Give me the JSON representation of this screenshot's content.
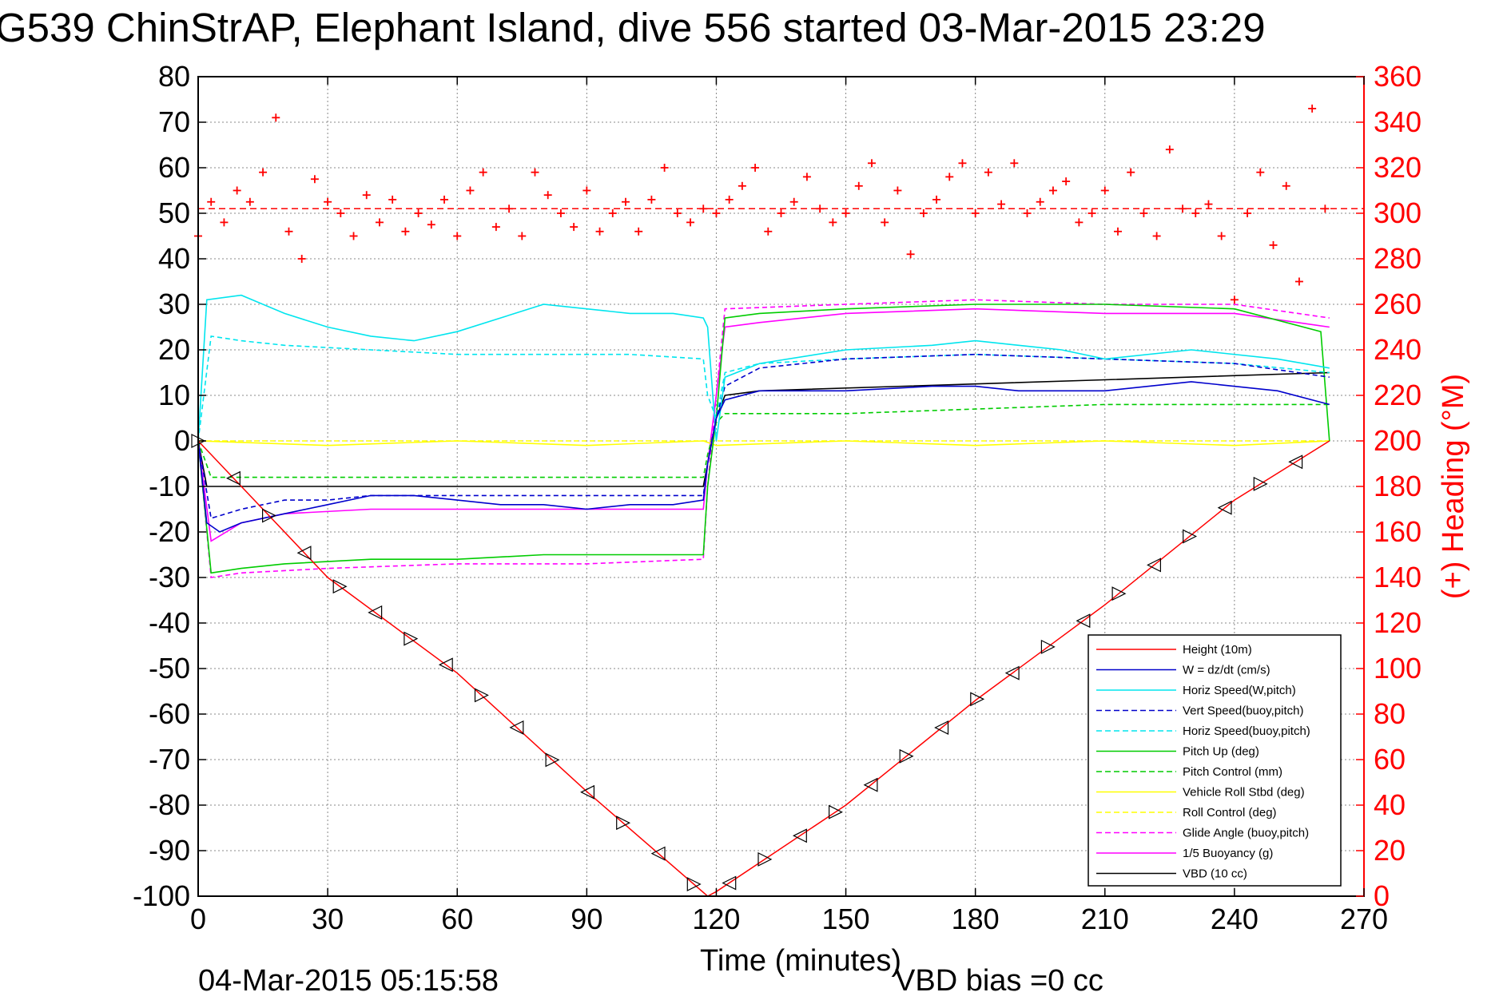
{
  "chart_data": {
    "type": "line",
    "title": "G539 ChinStrAP, Elephant Island, dive 556 started 03-Mar-2015 23:29",
    "xlabel": "Time (minutes)",
    "ylabel_right": "(+) Heading (°M)",
    "footer_left": "04-Mar-2015 05:15:58",
    "footer_right": "VBD bias =0 cc",
    "xlim": [
      0,
      270
    ],
    "ylim": [
      -100,
      80
    ],
    "ylim_right": [
      0,
      360
    ],
    "x_ticks": [
      "0",
      "30",
      "60",
      "90",
      "120",
      "150",
      "180",
      "210",
      "240",
      "270"
    ],
    "y_ticks": [
      "80",
      "70",
      "60",
      "50",
      "40",
      "30",
      "20",
      "10",
      "0",
      "-10",
      "-20",
      "-30",
      "-40",
      "-50",
      "-60",
      "-70",
      "-80",
      "-90",
      "-100"
    ],
    "y_ticks_right": [
      "360",
      "340",
      "320",
      "300",
      "280",
      "260",
      "240",
      "220",
      "200",
      "180",
      "160",
      "140",
      "120",
      "100",
      "80",
      "60",
      "40",
      "20",
      "0"
    ],
    "grid": true,
    "legend_position": "lower-right",
    "colors": {
      "height": "#ff0000",
      "w": "#0000cc",
      "horiz": "#00e5ee",
      "pitch": "#00cc00",
      "roll": "#ffff00",
      "glide": "#ff00ff",
      "vbd": "#000000",
      "heading": "#ff0000"
    },
    "series": [
      {
        "name": "Height (10m)",
        "color": "#ff0000",
        "style": "solid",
        "x": [
          0,
          30,
          60,
          90,
          118,
          120,
          150,
          180,
          210,
          240,
          262
        ],
        "y": [
          0,
          -30,
          -51,
          -77,
          -100,
          -99,
          -80,
          -57,
          -36,
          -13,
          0
        ]
      },
      {
        "name": "W = dz/dt (cm/s)",
        "color": "#0000cc",
        "style": "solid",
        "x": [
          0,
          2,
          5,
          10,
          20,
          30,
          40,
          50,
          60,
          70,
          80,
          90,
          100,
          110,
          117,
          118,
          120,
          122,
          130,
          150,
          170,
          180,
          190,
          210,
          230,
          250,
          262
        ],
        "y": [
          0,
          -18,
          -20,
          -18,
          -16,
          -14,
          -12,
          -12,
          -13,
          -14,
          -14,
          -15,
          -14,
          -14,
          -13,
          -5,
          5,
          9,
          11,
          11,
          12,
          12,
          11,
          11,
          13,
          11,
          8
        ]
      },
      {
        "name": "Horiz Speed(W,pitch)",
        "color": "#00e5ee",
        "style": "solid",
        "x": [
          0,
          2,
          10,
          20,
          30,
          40,
          50,
          60,
          70,
          80,
          90,
          100,
          110,
          117,
          118,
          120,
          122,
          130,
          150,
          170,
          180,
          190,
          200,
          210,
          230,
          250,
          262
        ],
        "y": [
          0,
          31,
          32,
          28,
          25,
          23,
          22,
          24,
          27,
          30,
          29,
          28,
          28,
          27,
          25,
          0,
          14,
          17,
          20,
          21,
          22,
          21,
          20,
          18,
          20,
          18,
          16
        ]
      },
      {
        "name": "Vert Speed(buoy,pitch)",
        "color": "#0000cc",
        "style": "dashed",
        "x": [
          0,
          3,
          10,
          20,
          30,
          40,
          60,
          80,
          100,
          117,
          118,
          120,
          122,
          130,
          150,
          180,
          210,
          240,
          262
        ],
        "y": [
          0,
          -17,
          -15,
          -13,
          -13,
          -12,
          -12,
          -12,
          -12,
          -12,
          -5,
          5,
          12,
          16,
          18,
          19,
          18,
          17,
          14
        ]
      },
      {
        "name": "Horiz Speed(buoy,pitch)",
        "color": "#00e5ee",
        "style": "dashed",
        "x": [
          0,
          3,
          10,
          20,
          40,
          60,
          80,
          100,
          117,
          118,
          120,
          122,
          130,
          150,
          180,
          210,
          240,
          262
        ],
        "y": [
          0,
          23,
          22,
          21,
          20,
          19,
          19,
          19,
          18,
          10,
          5,
          15,
          17,
          18,
          19,
          18,
          17,
          15
        ]
      },
      {
        "name": "Pitch Up (deg)",
        "color": "#00cc00",
        "style": "solid",
        "x": [
          0,
          3,
          10,
          20,
          40,
          60,
          80,
          100,
          117,
          118,
          120,
          122,
          130,
          150,
          180,
          210,
          240,
          260,
          262
        ],
        "y": [
          0,
          -29,
          -28,
          -27,
          -26,
          -26,
          -25,
          -25,
          -25,
          -10,
          5,
          27,
          28,
          29,
          30,
          30,
          29,
          24,
          0
        ]
      },
      {
        "name": "Pitch Control (mm)",
        "color": "#00cc00",
        "style": "dashed",
        "x": [
          0,
          3,
          60,
          117,
          118,
          120,
          122,
          150,
          180,
          210,
          240,
          262
        ],
        "y": [
          0,
          -8,
          -8,
          -8,
          -3,
          4,
          6,
          6,
          7,
          8,
          8,
          8
        ]
      },
      {
        "name": "Vehicle Roll Stbd (deg)",
        "color": "#ffff00",
        "style": "solid",
        "x": [
          0,
          30,
          60,
          90,
          117,
          120,
          150,
          180,
          210,
          240,
          262
        ],
        "y": [
          0,
          -1,
          0,
          -1,
          0,
          -1,
          0,
          -1,
          0,
          -1,
          0
        ]
      },
      {
        "name": "Roll Control (deg)",
        "color": "#ffff00",
        "style": "dashed",
        "x": [
          0,
          30,
          60,
          90,
          117,
          120,
          150,
          180,
          210,
          240,
          262
        ],
        "y": [
          0,
          0,
          0,
          0,
          0,
          0,
          0,
          0,
          0,
          0,
          0
        ]
      },
      {
        "name": "Glide Angle (buoy,pitch)",
        "color": "#ff00ff",
        "style": "dashed",
        "x": [
          0,
          3,
          10,
          30,
          60,
          90,
          117,
          118,
          120,
          122,
          150,
          180,
          210,
          240,
          262
        ],
        "y": [
          0,
          -30,
          -29,
          -28,
          -27,
          -27,
          -26,
          -10,
          10,
          29,
          30,
          31,
          30,
          30,
          27
        ]
      },
      {
        "name": "1/5 Buoyancy (g)",
        "color": "#ff00ff",
        "style": "solid",
        "x": [
          0,
          3,
          10,
          20,
          40,
          60,
          90,
          117,
          118,
          120,
          122,
          130,
          150,
          180,
          210,
          240,
          262
        ],
        "y": [
          0,
          -22,
          -18,
          -16,
          -15,
          -15,
          -15,
          -15,
          -5,
          10,
          25,
          26,
          28,
          29,
          28,
          28,
          25
        ]
      },
      {
        "name": "VBD (10 cc)",
        "color": "#000000",
        "style": "solid",
        "x": [
          0,
          2,
          117,
          118,
          120,
          122,
          130,
          262
        ],
        "y": [
          0,
          -10,
          -10,
          -5,
          5,
          10,
          11,
          15
        ]
      },
      {
        "name": "Heading",
        "color": "#ff0000",
        "axis": "right",
        "marker": "+",
        "reference": 302,
        "x": [
          0,
          3,
          6,
          9,
          12,
          15,
          18,
          21,
          24,
          27,
          30,
          33,
          36,
          39,
          42,
          45,
          48,
          51,
          54,
          57,
          60,
          63,
          66,
          69,
          72,
          75,
          78,
          81,
          84,
          87,
          90,
          93,
          96,
          99,
          102,
          105,
          108,
          111,
          114,
          117,
          120,
          123,
          126,
          129,
          132,
          135,
          138,
          141,
          144,
          147,
          150,
          153,
          156,
          159,
          162,
          165,
          168,
          171,
          174,
          177,
          180,
          183,
          186,
          189,
          192,
          195,
          198,
          201,
          204,
          207,
          210,
          213,
          216,
          219,
          222,
          225,
          228,
          231,
          234,
          237,
          240,
          243,
          246,
          249,
          252,
          255,
          258,
          261
        ],
        "y": [
          290,
          305,
          296,
          310,
          305,
          318,
          342,
          292,
          280,
          315,
          305,
          300,
          290,
          308,
          296,
          306,
          292,
          300,
          295,
          306,
          290,
          310,
          318,
          294,
          302,
          290,
          318,
          308,
          300,
          294,
          310,
          292,
          300,
          305,
          292,
          306,
          320,
          300,
          296,
          302,
          300,
          306,
          312,
          320,
          292,
          300,
          305,
          316,
          302,
          296,
          300,
          312,
          322,
          296,
          310,
          282,
          300,
          306,
          316,
          322,
          300,
          318,
          304,
          322,
          300,
          305,
          310,
          314,
          296,
          300,
          310,
          292,
          318,
          300,
          290,
          328,
          302,
          300,
          304,
          290,
          262,
          300,
          318,
          286,
          312,
          270,
          346,
          302
        ]
      }
    ]
  }
}
